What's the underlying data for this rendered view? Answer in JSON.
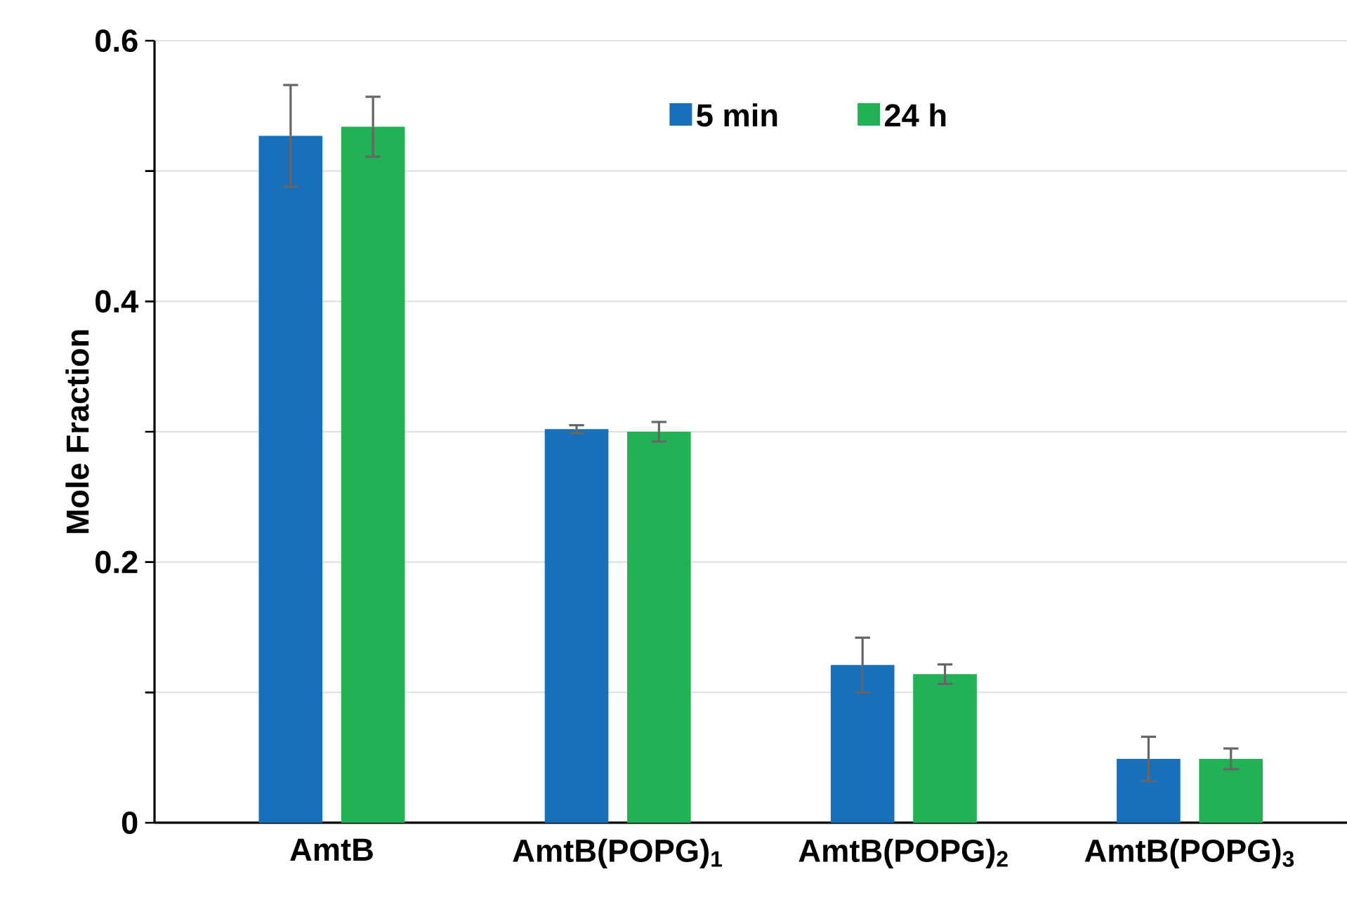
{
  "chart_data": {
    "type": "bar",
    "ylabel": "Mole Fraction",
    "categories": [
      "AmtB",
      "AmtB(POPG)$_{1}$",
      "AmtB(POPG)$_{2}$",
      "AmtB(POPG)$_{3}$"
    ],
    "series": [
      {
        "name": "5 min",
        "color": "#1870bb",
        "values": [
          0.527,
          0.302,
          0.121,
          0.049
        ],
        "errors": [
          0.039,
          0.003,
          0.021,
          0.017
        ]
      },
      {
        "name": "24 h",
        "color": "#22b155",
        "values": [
          0.534,
          0.3,
          0.114,
          0.049
        ],
        "errors": [
          0.023,
          0.0075,
          0.0075,
          0.008
        ]
      }
    ],
    "ylim": [
      0,
      0.6
    ],
    "yticks": [
      0,
      {
        "value": 0.1,
        "label": null
      },
      0.2,
      {
        "value": 0.3,
        "label": null
      },
      0.4,
      {
        "value": 0.5,
        "label": null
      },
      0.6
    ],
    "grid": "y",
    "legend": "top"
  }
}
